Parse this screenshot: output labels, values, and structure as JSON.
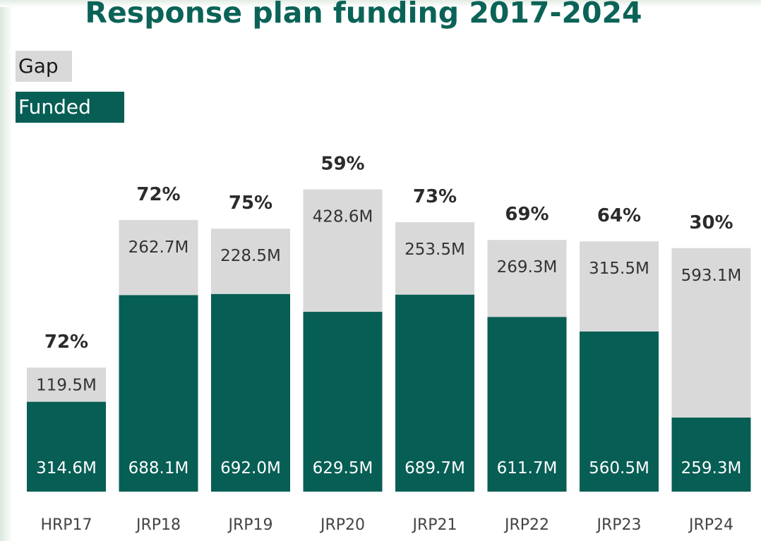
{
  "title": "Response plan funding 2017-2024",
  "legend": {
    "gap_label": "Gap",
    "funded_label": "Funded"
  },
  "colors": {
    "title": "#0b6357",
    "gap": "#d9d9d9",
    "funded": "#075e55"
  },
  "chart_data": {
    "type": "bar",
    "stacked": true,
    "categories": [
      "HRP17",
      "JRP18",
      "JRP19",
      "JRP20",
      "JRP21",
      "JRP22",
      "JRP23",
      "JRP24"
    ],
    "series": [
      {
        "name": "Funded",
        "values": [
          314.6,
          688.1,
          692.0,
          629.5,
          689.7,
          611.7,
          560.5,
          259.3
        ],
        "labels": [
          "314.6M",
          "688.1M",
          "692.0M",
          "629.5M",
          "689.7M",
          "611.7M",
          "560.5M",
          "259.3M"
        ]
      },
      {
        "name": "Gap",
        "values": [
          119.5,
          262.7,
          228.5,
          428.6,
          253.5,
          269.3,
          315.5,
          593.1
        ],
        "labels": [
          "119.5M",
          "262.7M",
          "228.5M",
          "428.6M",
          "253.5M",
          "269.3M",
          "315.5M",
          "593.1M"
        ]
      }
    ],
    "percent_labels": [
      "72%",
      "72%",
      "75%",
      "59%",
      "73%",
      "69%",
      "64%",
      "30%"
    ],
    "ylim": [
      0,
      1100
    ],
    "legend_position": "top-left",
    "grid": false
  }
}
